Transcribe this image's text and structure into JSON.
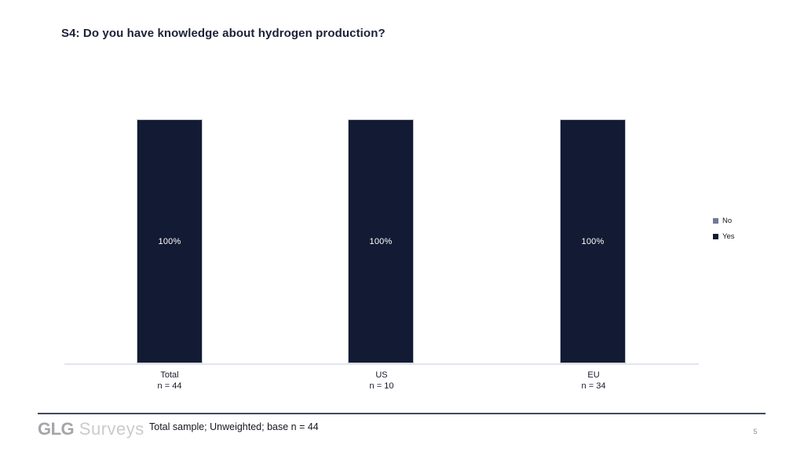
{
  "slide": {
    "title": "S4: Do you have knowledge about hydrogen production?",
    "footnote": "Total sample; Unweighted; base n = 44",
    "page_number": "5",
    "logo": {
      "bold": "GLG",
      "light": "Surveys"
    }
  },
  "chart_data": {
    "type": "bar",
    "subtype": "100-percent-stacked-column",
    "title": "",
    "xlabel": "",
    "ylabel": "",
    "ylim": [
      0,
      100
    ],
    "grid": false,
    "legend_position": "right",
    "categories": [
      "Total",
      "US",
      "EU"
    ],
    "category_sublabels": [
      "n = 44",
      "n = 10",
      "n = 34"
    ],
    "series": [
      {
        "name": "No",
        "values": [
          0,
          0,
          0
        ],
        "color": "#6f7b97"
      },
      {
        "name": "Yes",
        "values": [
          100,
          100,
          100
        ],
        "color": "#131a33"
      }
    ],
    "data_labels": [
      "100%",
      "100%",
      "100%"
    ],
    "colors": {
      "bar_yes": "#131a33",
      "bar_no": "#6f7b97",
      "axis_line": "#e3e5ee",
      "footer_rule": "#454a61",
      "title_text": "#1b2138"
    }
  }
}
